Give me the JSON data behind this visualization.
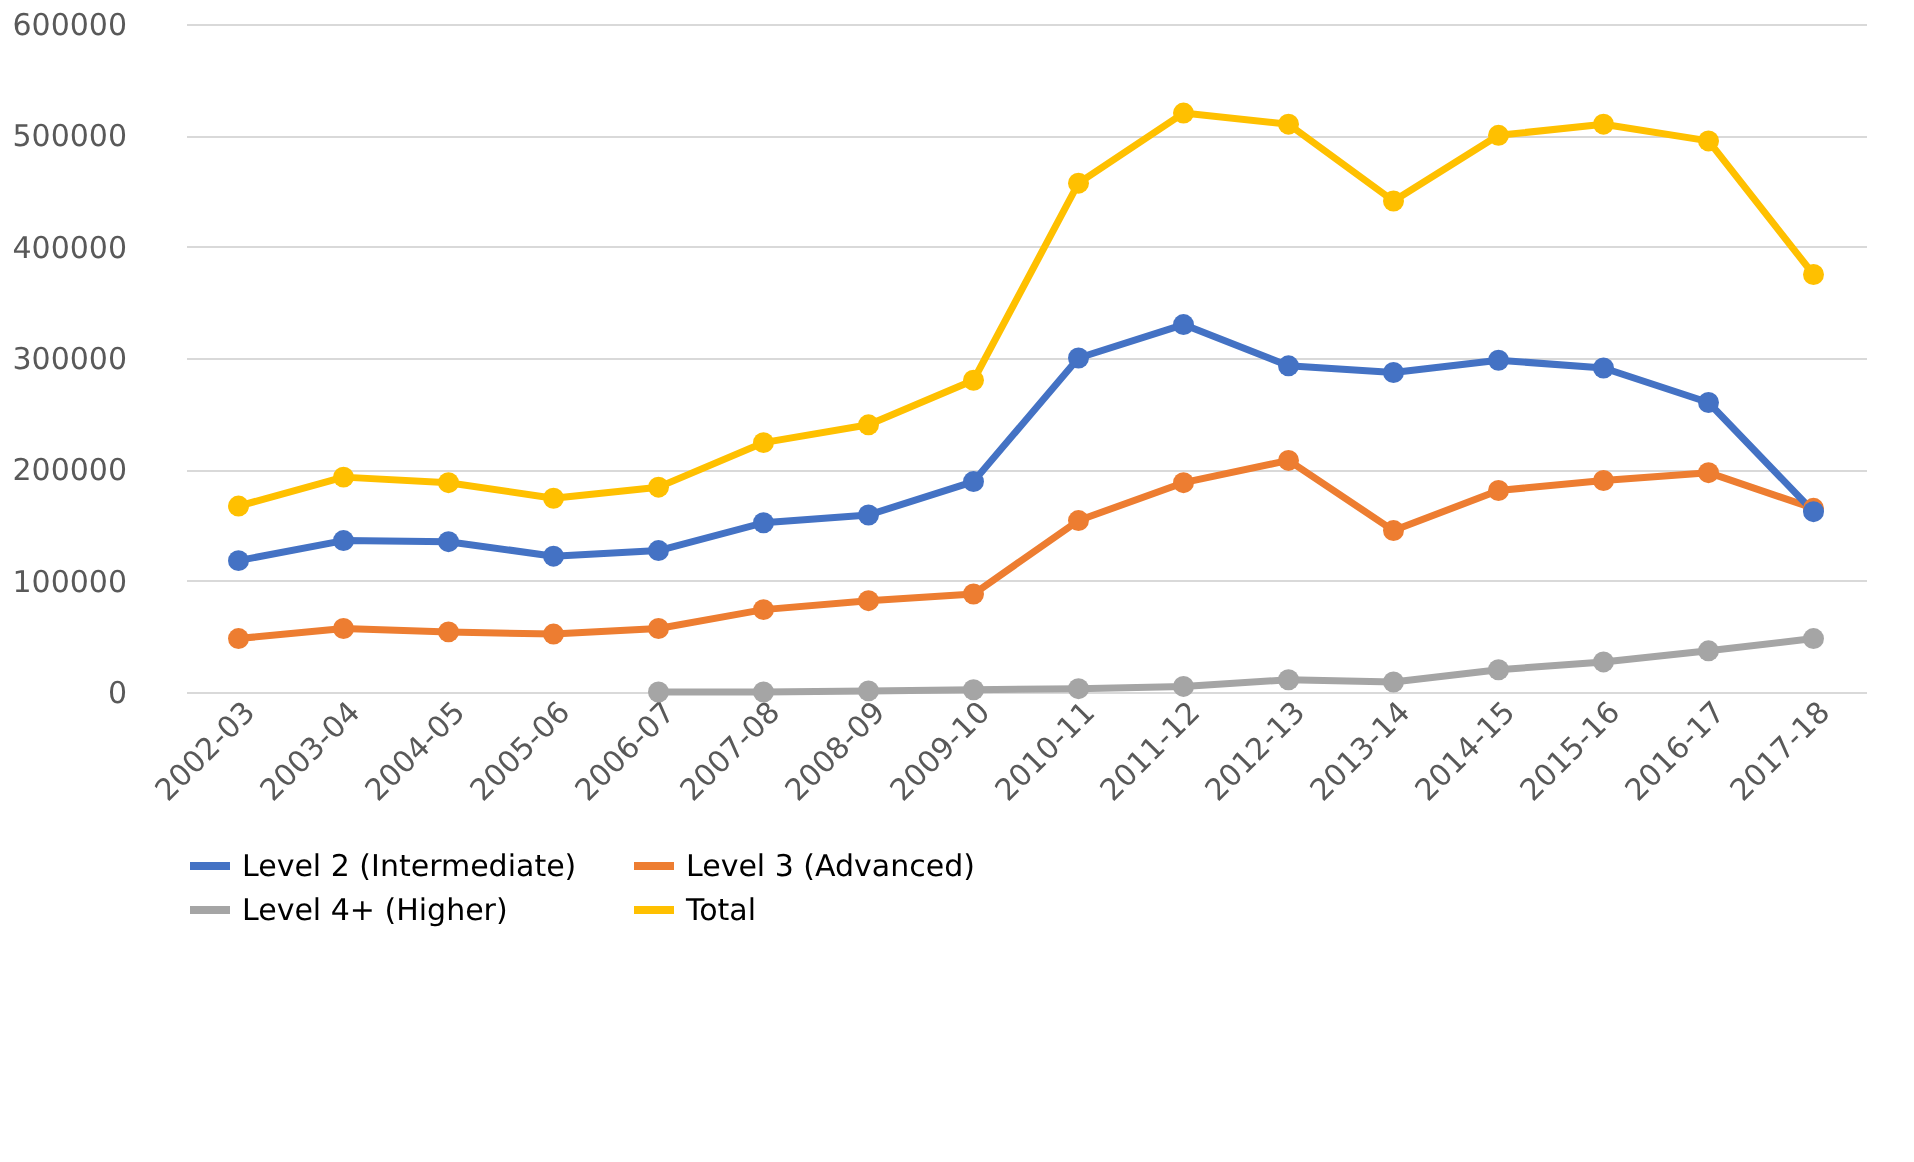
{
  "chart_data": {
    "type": "line",
    "categories": [
      "2002-03",
      "2003-04",
      "2004-05",
      "2005-06",
      "2006-07",
      "2007-08",
      "2008-09",
      "2009-10",
      "2010-11",
      "2011-12",
      "2012-13",
      "2013-14",
      "2014-15",
      "2015-16",
      "2016-17",
      "2017-18"
    ],
    "series": [
      {
        "name": "Level 2 (Intermediate)",
        "color": "#4472c4",
        "values": [
          118000,
          136000,
          135000,
          122000,
          127000,
          152000,
          159000,
          189000,
          300000,
          330000,
          293000,
          287000,
          298000,
          291000,
          260000,
          162000
        ]
      },
      {
        "name": "Level 3 (Advanced)",
        "color": "#ed7d31",
        "values": [
          48000,
          57000,
          54000,
          52000,
          57000,
          74000,
          82000,
          88000,
          154000,
          188000,
          208000,
          145000,
          181000,
          190000,
          197000,
          165000
        ]
      },
      {
        "name": "Level 4+ (Higher)",
        "color": "#a5a5a5",
        "values": [
          null,
          null,
          null,
          null,
          0,
          0,
          1000,
          2000,
          3000,
          5000,
          11000,
          9000,
          20000,
          27000,
          37000,
          48000
        ]
      },
      {
        "name": "Total",
        "color": "#ffc000",
        "values": [
          167000,
          193000,
          188000,
          174000,
          184000,
          224000,
          240000,
          280000,
          457000,
          520000,
          510000,
          441000,
          500000,
          510000,
          495000,
          375000
        ]
      }
    ],
    "ylim": [
      0,
      600000
    ],
    "yticks": [
      0,
      100000,
      200000,
      300000,
      400000,
      500000,
      600000
    ],
    "grid": "y",
    "legend": "bottom",
    "marker": "circle",
    "line_style": "solid"
  }
}
